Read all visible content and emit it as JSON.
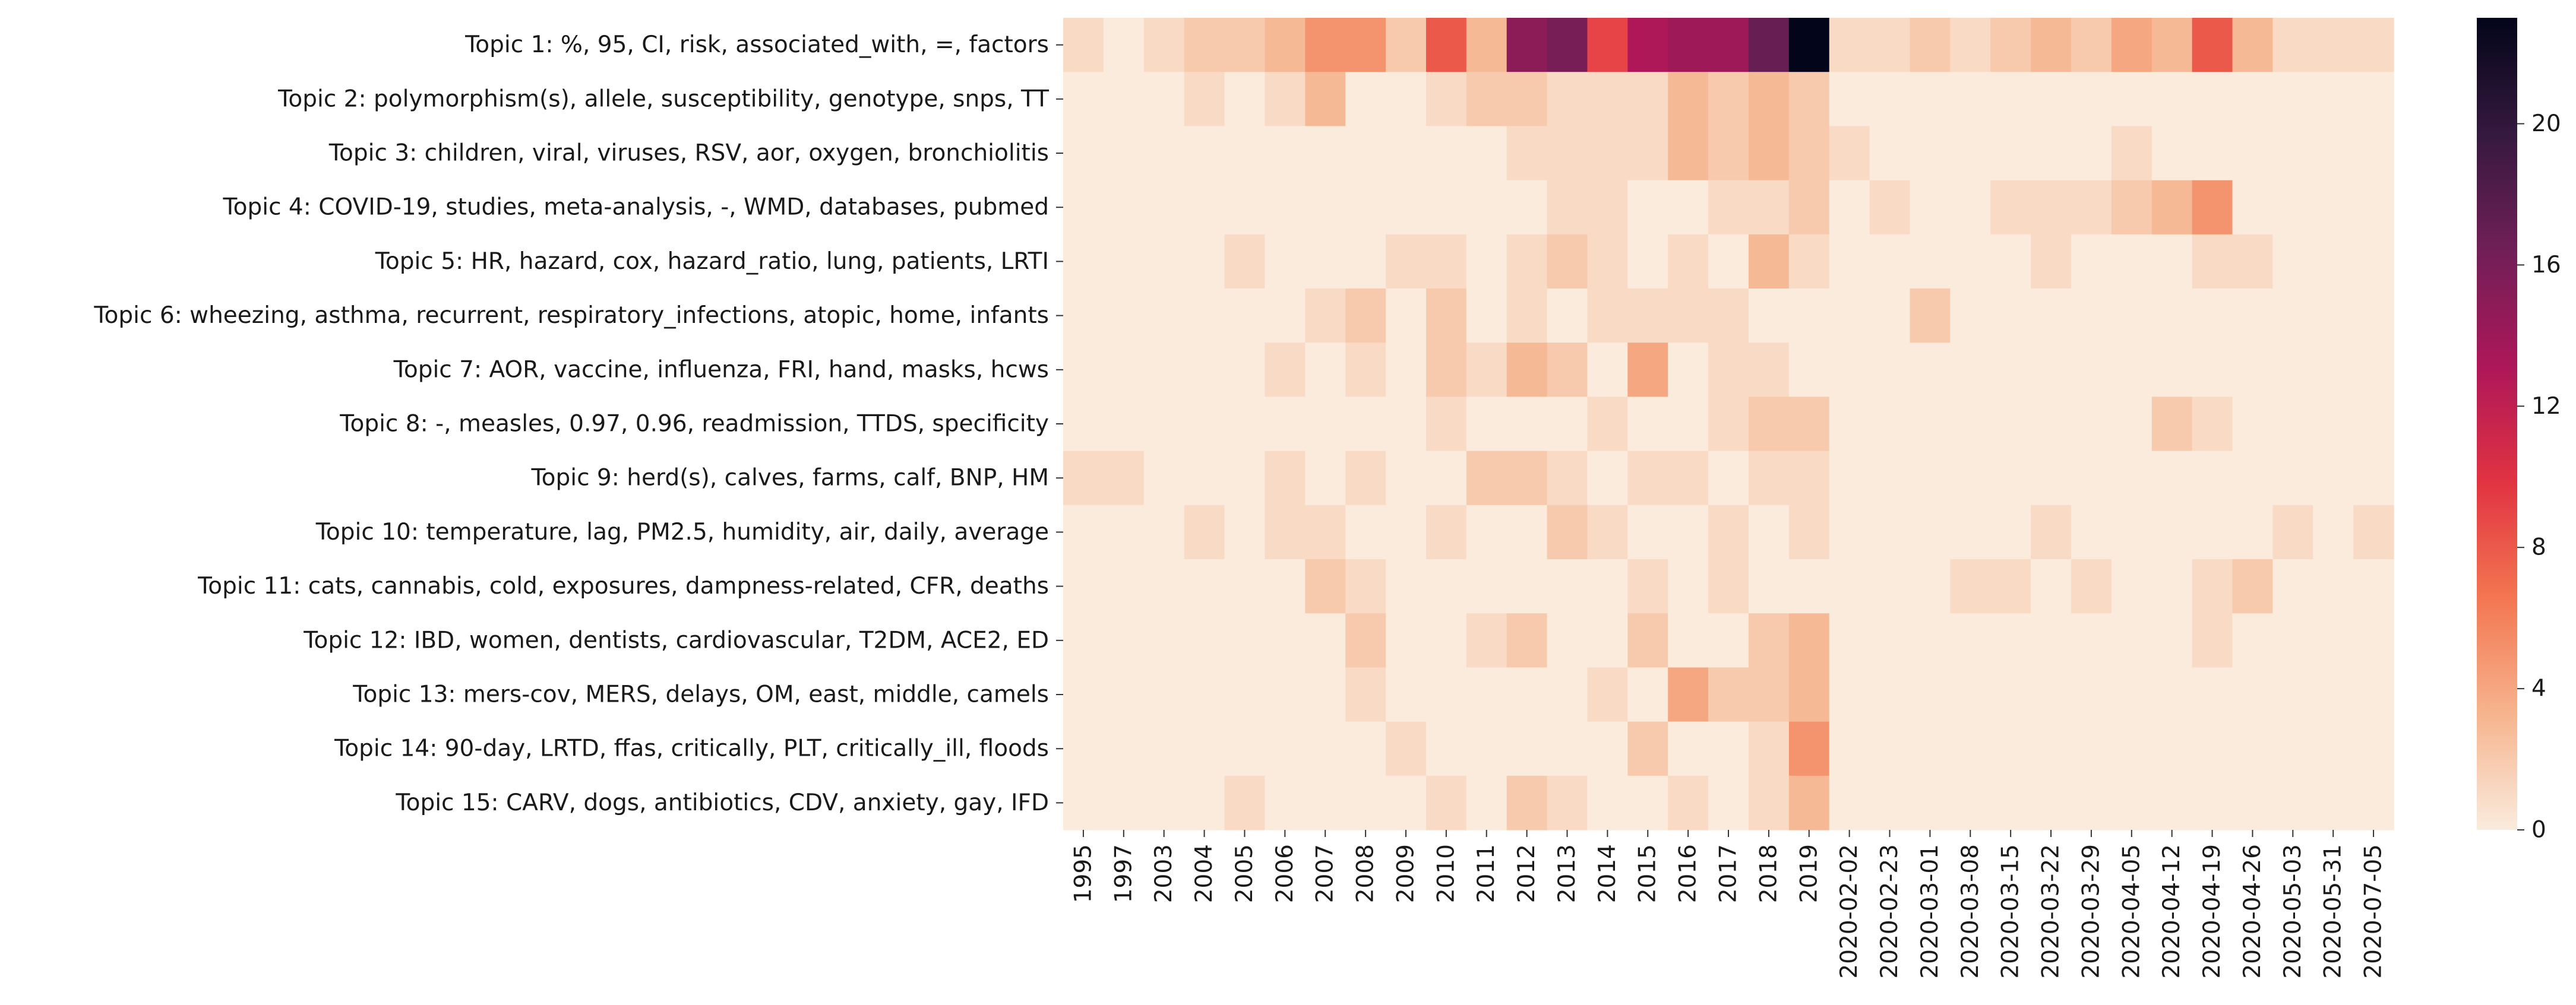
{
  "chart_data": {
    "type": "heatmap",
    "title": "",
    "xlabel": "",
    "ylabel": "",
    "rows": [
      "Topic 1: %, 95, CI, risk, associated_with, =, factors",
      "Topic 2: polymorphism(s), allele, susceptibility, genotype, snps, TT",
      "Topic 3: children, viral, viruses, RSV, aor, oxygen, bronchiolitis",
      "Topic 4: COVID-19, studies, meta-analysis, -, WMD, databases, pubmed",
      "Topic 5: HR, hazard, cox, hazard_ratio, lung, patients, LRTI",
      "Topic 6: wheezing, asthma, recurrent, respiratory_infections, atopic, home, infants",
      "Topic 7: AOR, vaccine, influenza, FRI, hand, masks, hcws",
      "Topic 8: -, measles, 0.97, 0.96, readmission, TTDS, specificity",
      "Topic 9: herd(s), calves, farms, calf, BNP, HM",
      "Topic 10: temperature, lag, PM2.5, humidity, air, daily, average",
      "Topic 11: cats, cannabis, cold, exposures, dampness-related, CFR, deaths",
      "Topic 12: IBD, women, dentists, cardiovascular, T2DM, ACE2, ED",
      "Topic 13: mers-cov, MERS, delays, OM, east, middle, camels",
      "Topic 14: 90-day, LRTD, ffas, critically, PLT, critically_ill, floods",
      "Topic 15: CARV, dogs, antibiotics, CDV, anxiety, gay, IFD"
    ],
    "columns": [
      "1995",
      "1997",
      "2003",
      "2004",
      "2005",
      "2006",
      "2007",
      "2008",
      "2009",
      "2010",
      "2011",
      "2012",
      "2013",
      "2014",
      "2015",
      "2016",
      "2017",
      "2018",
      "2019",
      "2020-02-02",
      "2020-02-23",
      "2020-03-01",
      "2020-03-08",
      "2020-03-15",
      "2020-03-22",
      "2020-03-29",
      "2020-04-05",
      "2020-04-12",
      "2020-04-19",
      "2020-04-26",
      "2020-05-03",
      "2020-05-31",
      "2020-07-05"
    ],
    "values": [
      [
        1,
        0,
        1,
        2,
        2,
        3,
        5,
        5,
        2,
        8,
        3,
        15,
        16,
        9,
        13,
        14,
        14,
        17,
        23,
        1,
        1,
        2,
        1,
        2,
        3,
        2,
        4,
        3,
        8,
        3,
        1,
        1,
        1
      ],
      [
        0,
        0,
        0,
        1,
        0,
        1,
        3,
        0,
        0,
        1,
        2,
        2,
        1,
        1,
        1,
        3,
        2,
        3,
        2,
        0,
        0,
        0,
        0,
        0,
        0,
        0,
        0,
        0,
        0,
        0,
        0,
        0,
        0
      ],
      [
        0,
        0,
        0,
        0,
        0,
        0,
        0,
        0,
        0,
        0,
        0,
        1,
        1,
        1,
        1,
        3,
        2,
        3,
        2,
        1,
        0,
        0,
        0,
        0,
        0,
        0,
        1,
        0,
        0,
        0,
        0,
        0,
        0
      ],
      [
        0,
        0,
        0,
        0,
        0,
        0,
        0,
        0,
        0,
        0,
        0,
        0,
        1,
        1,
        0,
        0,
        1,
        1,
        2,
        0,
        1,
        0,
        0,
        1,
        1,
        1,
        2,
        3,
        5,
        0,
        0,
        0,
        0
      ],
      [
        0,
        0,
        0,
        0,
        1,
        0,
        0,
        0,
        1,
        1,
        0,
        1,
        2,
        1,
        0,
        1,
        0,
        3,
        1,
        0,
        0,
        0,
        0,
        0,
        1,
        0,
        0,
        0,
        1,
        1,
        0,
        0,
        0
      ],
      [
        0,
        0,
        0,
        0,
        0,
        0,
        1,
        2,
        0,
        2,
        0,
        1,
        0,
        1,
        1,
        1,
        1,
        0,
        0,
        0,
        0,
        2,
        0,
        0,
        0,
        0,
        0,
        0,
        0,
        0,
        0,
        0,
        0
      ],
      [
        0,
        0,
        0,
        0,
        0,
        1,
        0,
        1,
        0,
        2,
        1,
        3,
        2,
        0,
        4,
        0,
        1,
        1,
        0,
        0,
        0,
        0,
        0,
        0,
        0,
        0,
        0,
        0,
        0,
        0,
        0,
        0,
        0
      ],
      [
        0,
        0,
        0,
        0,
        0,
        0,
        0,
        0,
        0,
        1,
        0,
        0,
        0,
        1,
        0,
        0,
        1,
        2,
        2,
        0,
        0,
        0,
        0,
        0,
        0,
        0,
        0,
        2,
        1,
        0,
        0,
        0,
        0
      ],
      [
        1,
        1,
        0,
        0,
        0,
        1,
        0,
        1,
        0,
        0,
        2,
        2,
        1,
        0,
        1,
        1,
        0,
        1,
        1,
        0,
        0,
        0,
        0,
        0,
        0,
        0,
        0,
        0,
        0,
        0,
        0,
        0,
        0
      ],
      [
        0,
        0,
        0,
        1,
        0,
        1,
        1,
        0,
        0,
        1,
        0,
        0,
        2,
        1,
        0,
        0,
        1,
        0,
        1,
        0,
        0,
        0,
        0,
        0,
        1,
        0,
        0,
        0,
        0,
        0,
        1,
        0,
        1
      ],
      [
        0,
        0,
        0,
        0,
        0,
        0,
        2,
        1,
        0,
        0,
        0,
        0,
        0,
        0,
        1,
        0,
        1,
        0,
        0,
        0,
        0,
        0,
        1,
        1,
        0,
        1,
        0,
        0,
        1,
        2,
        0,
        0,
        0
      ],
      [
        0,
        0,
        0,
        0,
        0,
        0,
        0,
        2,
        0,
        0,
        1,
        2,
        0,
        0,
        2,
        0,
        0,
        2,
        3,
        0,
        0,
        0,
        0,
        0,
        0,
        0,
        0,
        0,
        1,
        0,
        0,
        0,
        0
      ],
      [
        0,
        0,
        0,
        0,
        0,
        0,
        0,
        1,
        0,
        0,
        0,
        0,
        0,
        1,
        0,
        4,
        2,
        2,
        3,
        0,
        0,
        0,
        0,
        0,
        0,
        0,
        0,
        0,
        0,
        0,
        0,
        0,
        0
      ],
      [
        0,
        0,
        0,
        0,
        0,
        0,
        0,
        0,
        1,
        0,
        0,
        0,
        0,
        0,
        2,
        0,
        0,
        1,
        5,
        0,
        0,
        0,
        0,
        0,
        0,
        0,
        0,
        0,
        0,
        0,
        0,
        0,
        0
      ],
      [
        0,
        0,
        0,
        0,
        1,
        0,
        0,
        0,
        0,
        1,
        0,
        2,
        1,
        0,
        0,
        1,
        0,
        1,
        3,
        0,
        0,
        0,
        0,
        0,
        0,
        0,
        0,
        0,
        0,
        0,
        0,
        0,
        0
      ]
    ],
    "colorscale": {
      "name": "rocket_r",
      "vmin": 0,
      "vmax": 23,
      "stops": [
        "#faebdd",
        "#f6b48e",
        "#f37651",
        "#e13342",
        "#ad1759",
        "#701f57",
        "#35193e",
        "#03051a"
      ]
    },
    "colorbar": {
      "ticks": [
        0,
        4,
        8,
        12,
        16,
        20
      ],
      "tick_labels": [
        "0",
        "4",
        "8",
        "12",
        "16",
        "20"
      ]
    }
  }
}
